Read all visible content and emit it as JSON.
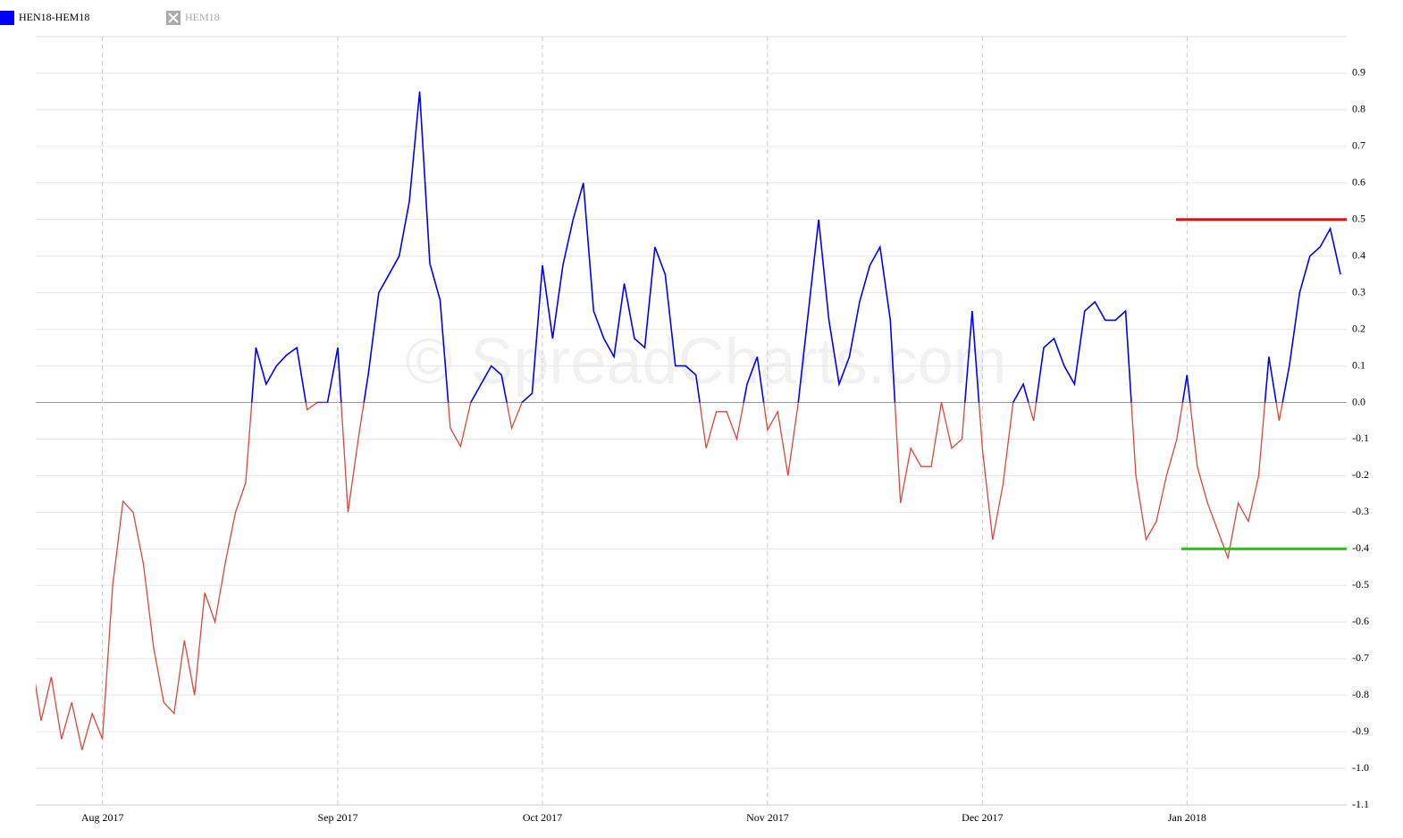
{
  "chart_data": {
    "type": "line",
    "watermark": "© SpreadCharts.com",
    "categories": [
      null,
      null,
      null,
      null,
      null,
      null,
      null,
      "Aug 2017",
      null,
      null,
      null,
      null,
      null,
      null,
      null,
      null,
      null,
      null,
      null,
      null,
      null,
      null,
      null,
      null,
      null,
      null,
      null,
      null,
      null,
      null,
      "Sep 2017",
      null,
      null,
      null,
      null,
      null,
      null,
      null,
      null,
      null,
      null,
      null,
      null,
      null,
      null,
      null,
      null,
      null,
      null,
      null,
      "Oct 2017",
      null,
      null,
      null,
      null,
      null,
      null,
      null,
      null,
      null,
      null,
      null,
      null,
      null,
      null,
      null,
      null,
      null,
      null,
      null,
      null,
      null,
      "Nov 2017",
      null,
      null,
      null,
      null,
      null,
      null,
      null,
      null,
      null,
      null,
      null,
      null,
      null,
      null,
      null,
      null,
      null,
      null,
      null,
      null,
      "Dec 2017",
      null,
      null,
      null,
      null,
      null,
      null,
      null,
      null,
      null,
      null,
      null,
      null,
      null,
      null,
      null,
      null,
      null,
      null,
      null,
      "Jan 2018",
      null,
      null,
      null,
      null,
      null,
      null,
      null,
      null,
      null,
      null,
      null,
      null,
      null,
      null,
      null
    ],
    "series": [
      {
        "name": "HEN18-HEM18",
        "color": "#0000ff",
        "negative_color": "#e0443a",
        "visible": true,
        "values": [
          -0.69,
          -0.87,
          -0.75,
          -0.92,
          -0.82,
          -0.95,
          -0.85,
          -0.92,
          -0.5,
          -0.27,
          -0.3,
          -0.44,
          -0.67,
          -0.82,
          -0.85,
          -0.65,
          -0.8,
          -0.52,
          -0.6,
          -0.44,
          -0.3,
          -0.22,
          0.15,
          0.05,
          0.1,
          0.13,
          0.15,
          -0.02,
          0,
          0,
          0.15,
          -0.3,
          -0.1,
          0.08,
          0.3,
          0.35,
          0.4,
          0.55,
          0.85,
          0.38,
          0.28,
          -0.07,
          -0.12,
          0,
          0.05,
          0.1,
          0.075,
          -0.07,
          0,
          0.025,
          0.375,
          0.175,
          0.375,
          0.5,
          0.6,
          0.25,
          0.175,
          0.125,
          0.325,
          0.175,
          0.15,
          0.425,
          0.35,
          0.1,
          0.1,
          0.075,
          -0.125,
          -0.025,
          -0.025,
          -0.1,
          0.05,
          0.125,
          -0.075,
          -0.025,
          -0.2,
          0,
          0.25,
          0.5,
          0.225,
          0.05,
          0.125,
          0.275,
          0.375,
          0.425,
          0.225,
          -0.275,
          -0.125,
          -0.175,
          -0.175,
          0,
          -0.125,
          -0.1,
          0.25,
          -0.125,
          -0.375,
          -0.225,
          0,
          0.05,
          -0.05,
          0.15,
          0.175,
          0.1,
          0.05,
          0.25,
          0.275,
          0.225,
          0.225,
          0.25,
          -0.2,
          -0.375,
          -0.325,
          -0.2,
          -0.1,
          0.075,
          -0.175,
          -0.275,
          -0.35,
          -0.425,
          -0.275,
          -0.325,
          -0.2,
          0.125,
          -0.05,
          0.1,
          0.3,
          0.4,
          0.425,
          0.475,
          0.35
        ]
      },
      {
        "name": "HEM18",
        "color": "#aaaaaa",
        "visible": false
      }
    ],
    "reference_lines": [
      {
        "value": 0.5,
        "color": "#e01010"
      },
      {
        "value": -0.4,
        "color": "#33bb22"
      }
    ],
    "ylim": [
      -1.1,
      1.0
    ],
    "yticks": [
      -1.1,
      {
        "value": -1,
        "label": "-1.0"
      },
      -0.9,
      -0.8,
      -0.7,
      -0.6,
      -0.5,
      -0.4,
      -0.3,
      -0.2,
      -0.1,
      {
        "value": 0,
        "label": "0.0"
      },
      0.1,
      0.2,
      0.3,
      0.4,
      0.5,
      0.6,
      0.7,
      0.8,
      0.9
    ],
    "grid": true
  }
}
